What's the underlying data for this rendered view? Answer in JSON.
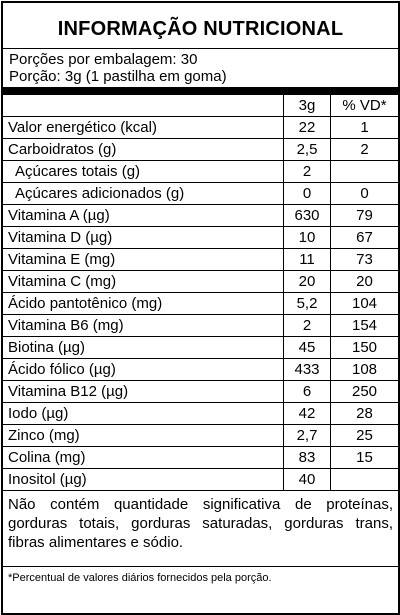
{
  "title": "INFORMAÇÃO NUTRICIONAL",
  "portions": {
    "per_package": "Porções por embalagem: 30",
    "portion": "Porção: 3g (1 pastilha em goma)"
  },
  "table": {
    "headers": {
      "name": "",
      "g": "3g",
      "vd": "% VD*"
    },
    "rows": [
      {
        "name": "Valor energético (kcal)",
        "g": "22",
        "vd": "1",
        "indent": false
      },
      {
        "name": "Carboidratos (g)",
        "g": "2,5",
        "vd": "2",
        "indent": false
      },
      {
        "name": "Açúcares totais (g)",
        "g": "2",
        "vd": "",
        "indent": true
      },
      {
        "name": "Açúcares adicionados (g)",
        "g": "0",
        "vd": "0",
        "indent": true
      },
      {
        "name": "Vitamina A (µg)",
        "g": "630",
        "vd": "79",
        "indent": false
      },
      {
        "name": "Vitamina D (µg)",
        "g": "10",
        "vd": "67",
        "indent": false
      },
      {
        "name": "Vitamina E (mg)",
        "g": "11",
        "vd": "73",
        "indent": false
      },
      {
        "name": "Vitamina C (mg)",
        "g": "20",
        "vd": "20",
        "indent": false
      },
      {
        "name": "Ácido pantotênico (mg)",
        "g": "5,2",
        "vd": "104",
        "indent": false
      },
      {
        "name": "Vitamina B6 (mg)",
        "g": "2",
        "vd": "154",
        "indent": false
      },
      {
        "name": "Biotina (µg)",
        "g": "45",
        "vd": "150",
        "indent": false
      },
      {
        "name": "Ácido fólico (µg)",
        "g": "433",
        "vd": "108",
        "indent": false
      },
      {
        "name": "Vitamina B12 (µg)",
        "g": "6",
        "vd": "250",
        "indent": false
      },
      {
        "name": "Iodo (µg)",
        "g": "42",
        "vd": "28",
        "indent": false
      },
      {
        "name": "Zinco (mg)",
        "g": "2,7",
        "vd": "25",
        "indent": false
      },
      {
        "name": "Colina (mg)",
        "g": "83",
        "vd": "15",
        "indent": false
      },
      {
        "name": "Inositol (µg)",
        "g": "40",
        "vd": "",
        "indent": false
      }
    ]
  },
  "note": "Não contém quantidade significativa de proteínas, gorduras totais, gorduras saturadas, gorduras trans, fibras alimentares e sódio.",
  "footnote": "*Percentual de valores diários fornecidos pela porção."
}
